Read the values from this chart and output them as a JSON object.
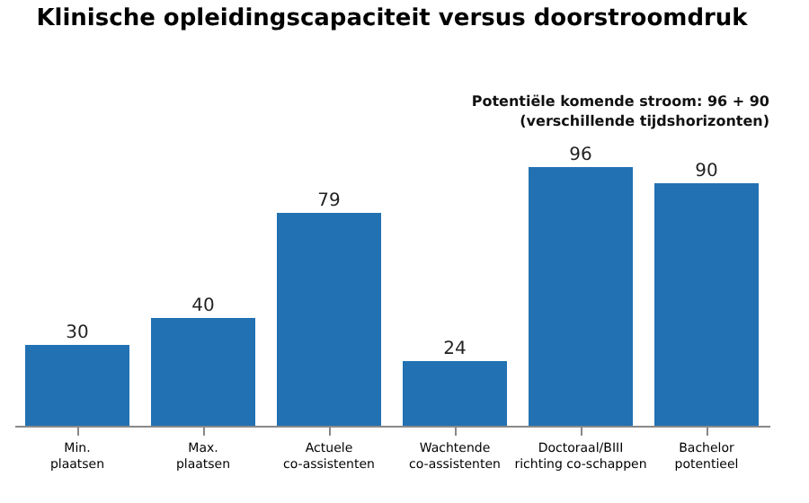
{
  "chart_data": {
    "type": "bar",
    "title": "Klinische opleidingscapaciteit versus doorstroomdruk",
    "categories": [
      "Min.\nplaatsen",
      "Max.\nplaatsen",
      "Actuele\nco-assistenten",
      "Wachtende\nco-assistenten",
      "Doctoraal/BIII\nrichting co-schappen",
      "Bachelor\npotentieel"
    ],
    "values": [
      30,
      40,
      79,
      24,
      96,
      90
    ],
    "color": "#2271b3",
    "data_labels": true,
    "annotations": [
      "Potentiële komende stroom: 96 + 90",
      "(verschillende tijdshorizonten)"
    ]
  }
}
